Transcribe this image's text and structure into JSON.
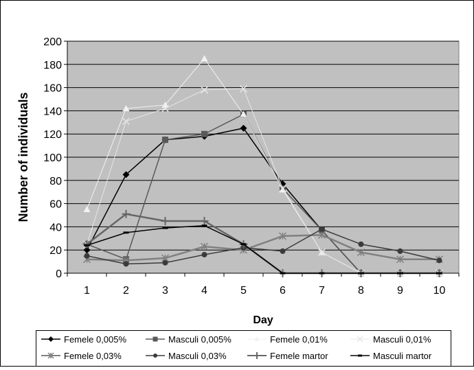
{
  "chart_data": {
    "type": "line",
    "title": "",
    "xlabel": "Day",
    "ylabel": "Number of individuals",
    "ylim": [
      0,
      200
    ],
    "yticks": [
      0,
      20,
      40,
      60,
      80,
      100,
      120,
      140,
      160,
      180,
      200
    ],
    "categories": [
      "1",
      "2",
      "3",
      "4",
      "5",
      "6",
      "7",
      "8",
      "9",
      "10"
    ],
    "grid": "horizontal",
    "legend_position": "bottom",
    "plot_background": "#c0c0c0",
    "series": [
      {
        "name": "Femele 0,005%",
        "color": "#000000",
        "marker": "diamond",
        "width": 1.5,
        "values": [
          20,
          85,
          115,
          118,
          125,
          77,
          37,
          0,
          0,
          0
        ]
      },
      {
        "name": "Masculi 0,005%",
        "color": "#595959",
        "marker": "square",
        "width": 1.5,
        "values": [
          25,
          12,
          115,
          120,
          137,
          73,
          37,
          0,
          0,
          0
        ]
      },
      {
        "name": "Femele 0,01%",
        "color": "#f2f2f2",
        "marker": "triangle",
        "width": 1,
        "values": [
          55,
          142,
          145,
          185,
          137,
          72,
          18,
          0,
          0,
          0
        ]
      },
      {
        "name": "Masculi 0,01%",
        "color": "#e6e6e6",
        "marker": "x",
        "width": 1,
        "values": [
          25,
          131,
          142,
          158,
          159,
          73,
          18,
          0,
          0,
          0
        ]
      },
      {
        "name": "Femele 0,03%",
        "color": "#808080",
        "marker": "asterisk",
        "width": 2.5,
        "values": [
          12,
          11,
          13,
          23,
          20,
          32,
          33,
          18,
          12,
          12
        ]
      },
      {
        "name": "Masculi 0,03%",
        "color": "#3a3a3a",
        "marker": "circle",
        "width": 1.5,
        "values": [
          15,
          8,
          9,
          16,
          22,
          19,
          38,
          25,
          19,
          11
        ]
      },
      {
        "name": "Femele martor",
        "color": "#666666",
        "marker": "plus",
        "width": 2.5,
        "values": [
          25,
          51,
          45,
          45,
          25,
          0,
          0,
          0,
          0,
          0
        ]
      },
      {
        "name": "Masculi martor",
        "color": "#000000",
        "marker": "dash",
        "width": 1.5,
        "values": [
          24,
          35,
          39,
          41,
          25,
          0,
          0,
          0,
          0,
          0
        ]
      }
    ]
  }
}
